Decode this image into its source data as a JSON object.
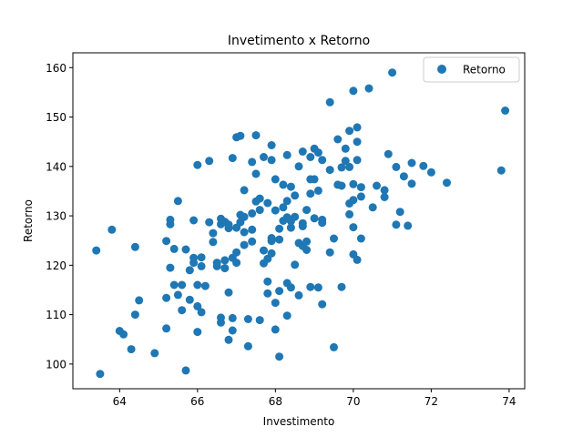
{
  "chart_data": {
    "type": "scatter",
    "title": "Invetimento x Retorno",
    "xlabel": "Investimento",
    "ylabel": "Retorno",
    "xlim": [
      62.8,
      74.4
    ],
    "ylim": [
      95,
      163
    ],
    "xticks": [
      64,
      66,
      68,
      70,
      72,
      74
    ],
    "yticks": [
      100,
      110,
      120,
      130,
      140,
      150,
      160
    ],
    "grid": false,
    "legend": {
      "placement": "top-right",
      "entries": [
        "Retorno"
      ]
    },
    "series": [
      {
        "name": "Retorno",
        "color": "#1f77b4",
        "marker": "circle",
        "points": [
          [
            63.5,
            98.0
          ],
          [
            63.4,
            123.0
          ],
          [
            63.8,
            127.2
          ],
          [
            64.0,
            106.7
          ],
          [
            64.1,
            106.0
          ],
          [
            64.3,
            103.0
          ],
          [
            64.4,
            110.0
          ],
          [
            64.4,
            123.7
          ],
          [
            64.5,
            112.9
          ],
          [
            64.9,
            102.2
          ],
          [
            65.2,
            107.2
          ],
          [
            65.2,
            113.4
          ],
          [
            65.2,
            124.9
          ],
          [
            65.3,
            119.5
          ],
          [
            65.3,
            129.2
          ],
          [
            65.3,
            128.3
          ],
          [
            65.4,
            116.0
          ],
          [
            65.4,
            123.3
          ],
          [
            65.5,
            114.0
          ],
          [
            65.5,
            133.0
          ],
          [
            65.6,
            116.0
          ],
          [
            65.6,
            110.9
          ],
          [
            65.7,
            98.7
          ],
          [
            65.7,
            123.2
          ],
          [
            65.8,
            113.0
          ],
          [
            65.8,
            119.0
          ],
          [
            65.9,
            120.5
          ],
          [
            65.9,
            121.5
          ],
          [
            65.9,
            129.1
          ],
          [
            66.0,
            106.5
          ],
          [
            66.0,
            111.7
          ],
          [
            66.0,
            116.0
          ],
          [
            66.1,
            110.5
          ],
          [
            66.0,
            140.3
          ],
          [
            66.1,
            119.8
          ],
          [
            66.1,
            121.6
          ],
          [
            66.2,
            115.8
          ],
          [
            66.3,
            141.1
          ],
          [
            66.3,
            128.7
          ],
          [
            66.4,
            126.5
          ],
          [
            66.4,
            124.7
          ],
          [
            66.5,
            119.8
          ],
          [
            66.5,
            120.5
          ],
          [
            66.6,
            128.3
          ],
          [
            66.6,
            129.4
          ],
          [
            66.6,
            109.4
          ],
          [
            66.6,
            108.4
          ],
          [
            66.7,
            119.4
          ],
          [
            66.7,
            121.0
          ],
          [
            66.7,
            128.8
          ],
          [
            66.8,
            114.5
          ],
          [
            66.8,
            127.5
          ],
          [
            66.8,
            128.2
          ],
          [
            66.9,
            109.3
          ],
          [
            66.8,
            104.9
          ],
          [
            66.9,
            106.8
          ],
          [
            66.9,
            121.5
          ],
          [
            66.9,
            141.7
          ],
          [
            67.0,
            145.9
          ],
          [
            67.0,
            120.5
          ],
          [
            67.0,
            122.6
          ],
          [
            67.0,
            127.6
          ],
          [
            67.1,
            128.7
          ],
          [
            67.1,
            130.2
          ],
          [
            67.1,
            146.2
          ],
          [
            67.2,
            135.2
          ],
          [
            67.2,
            124.1
          ],
          [
            67.2,
            126.7
          ],
          [
            67.2,
            129.8
          ],
          [
            67.3,
            109.1
          ],
          [
            67.3,
            103.6
          ],
          [
            67.4,
            127.2
          ],
          [
            67.4,
            130.5
          ],
          [
            67.4,
            124.8
          ],
          [
            67.5,
            146.3
          ],
          [
            67.4,
            140.9
          ],
          [
            67.5,
            138.5
          ],
          [
            67.5,
            132.9
          ],
          [
            67.6,
            131.2
          ],
          [
            67.6,
            133.5
          ],
          [
            67.6,
            108.9
          ],
          [
            67.7,
            141.9
          ],
          [
            67.7,
            120.4
          ],
          [
            67.7,
            123.0
          ],
          [
            67.8,
            121.3
          ],
          [
            67.8,
            116.7
          ],
          [
            67.8,
            114.3
          ],
          [
            67.8,
            132.6
          ],
          [
            67.9,
            144.3
          ],
          [
            67.9,
            141.3
          ],
          [
            67.9,
            124.9
          ],
          [
            67.9,
            122.4
          ],
          [
            67.9,
            125.5
          ],
          [
            68.0,
            112.4
          ],
          [
            68.0,
            131.1
          ],
          [
            68.0,
            107.0
          ],
          [
            68.0,
            137.4
          ],
          [
            68.1,
            127.4
          ],
          [
            68.1,
            125.2
          ],
          [
            68.1,
            114.8
          ],
          [
            68.1,
            101.5
          ],
          [
            68.2,
            136.3
          ],
          [
            68.2,
            129.0
          ],
          [
            68.2,
            131.7
          ],
          [
            68.3,
            129.7
          ],
          [
            68.3,
            133.0
          ],
          [
            68.3,
            142.3
          ],
          [
            68.3,
            109.8
          ],
          [
            68.3,
            116.4
          ],
          [
            68.4,
            127.6
          ],
          [
            68.4,
            128.9
          ],
          [
            68.4,
            135.9
          ],
          [
            68.4,
            115.5
          ],
          [
            68.5,
            129.8
          ],
          [
            68.5,
            120.1
          ],
          [
            68.5,
            134.1
          ],
          [
            68.6,
            124.5
          ],
          [
            68.6,
            140.0
          ],
          [
            68.6,
            113.9
          ],
          [
            68.7,
            127.9
          ],
          [
            68.7,
            128.5
          ],
          [
            68.7,
            123.9
          ],
          [
            68.7,
            143.0
          ],
          [
            68.8,
            131.2
          ],
          [
            68.8,
            124.8
          ],
          [
            68.8,
            123.1
          ],
          [
            68.9,
            134.5
          ],
          [
            68.9,
            137.4
          ],
          [
            68.9,
            115.6
          ],
          [
            68.9,
            141.9
          ],
          [
            69.0,
            143.6
          ],
          [
            69.0,
            129.5
          ],
          [
            69.0,
            137.4
          ],
          [
            69.1,
            135.1
          ],
          [
            69.1,
            142.8
          ],
          [
            69.1,
            115.5
          ],
          [
            69.2,
            129.2
          ],
          [
            69.2,
            112.1
          ],
          [
            69.2,
            128.6
          ],
          [
            69.2,
            141.3
          ],
          [
            69.4,
            139.3
          ],
          [
            69.4,
            153.0
          ],
          [
            69.4,
            122.6
          ],
          [
            69.5,
            125.4
          ],
          [
            69.5,
            103.4
          ],
          [
            69.6,
            136.3
          ],
          [
            69.6,
            145.5
          ],
          [
            69.7,
            139.8
          ],
          [
            69.7,
            115.6
          ],
          [
            69.7,
            136.1
          ],
          [
            69.8,
            143.6
          ],
          [
            69.8,
            141.1
          ],
          [
            69.9,
            132.5
          ],
          [
            69.9,
            147.2
          ],
          [
            69.9,
            130.3
          ],
          [
            69.9,
            139.9
          ],
          [
            70.0,
            155.3
          ],
          [
            70.0,
            136.4
          ],
          [
            70.0,
            133.2
          ],
          [
            70.0,
            127.7
          ],
          [
            70.0,
            122.2
          ],
          [
            70.1,
            145.0
          ],
          [
            70.1,
            147.9
          ],
          [
            70.1,
            121.1
          ],
          [
            70.1,
            141.3
          ],
          [
            70.2,
            125.4
          ],
          [
            70.2,
            133.9
          ],
          [
            70.2,
            135.8
          ],
          [
            70.4,
            155.8
          ],
          [
            70.5,
            131.7
          ],
          [
            70.6,
            136.1
          ],
          [
            70.8,
            135.2
          ],
          [
            70.8,
            133.8
          ],
          [
            70.9,
            142.5
          ],
          [
            71.0,
            159.0
          ],
          [
            71.1,
            128.2
          ],
          [
            71.1,
            139.9
          ],
          [
            71.2,
            130.8
          ],
          [
            71.3,
            138.0
          ],
          [
            71.4,
            128.0
          ],
          [
            71.5,
            140.7
          ],
          [
            71.5,
            136.5
          ],
          [
            71.8,
            140.1
          ],
          [
            72.0,
            138.8
          ],
          [
            72.4,
            136.7
          ],
          [
            73.8,
            139.2
          ],
          [
            73.9,
            151.3
          ]
        ]
      }
    ]
  }
}
